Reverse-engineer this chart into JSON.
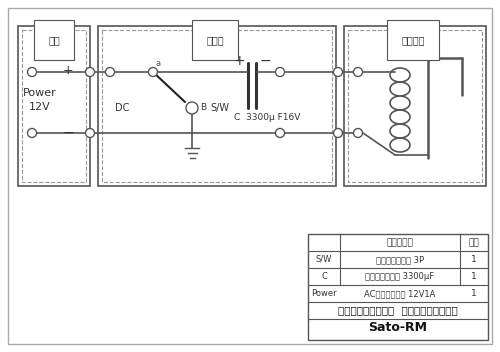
{
  "bg_color": "#ffffff",
  "line_color": "#555555",
  "dashed_color": "#888888",
  "title_main": "コンデンサー蓄電式  電動ポイント切替機",
  "title_sub": "Sato-RM",
  "label_dengen": "電源",
  "label_kirikae": "切替機",
  "label_point": "ポイント",
  "label_power": "Power\n12V",
  "label_dc": "DC",
  "label_sw": "S/W",
  "label_cap": "C  3300μ F16V",
  "label_b": "B",
  "label_plus_power": "+",
  "label_minus_power": "−",
  "label_plus_cap": "+",
  "label_minus_cap": "−",
  "table_headers": [
    "部品リスト",
    "個数"
  ],
  "table_col0": [
    "S/W",
    "C",
    "Power"
  ],
  "table_col1": [
    "トルグスイッチ 3P",
    "コンデンサー　 3300μF",
    "ACアダプター　 12V1A"
  ],
  "table_col2": [
    "1",
    "1",
    "1"
  ]
}
